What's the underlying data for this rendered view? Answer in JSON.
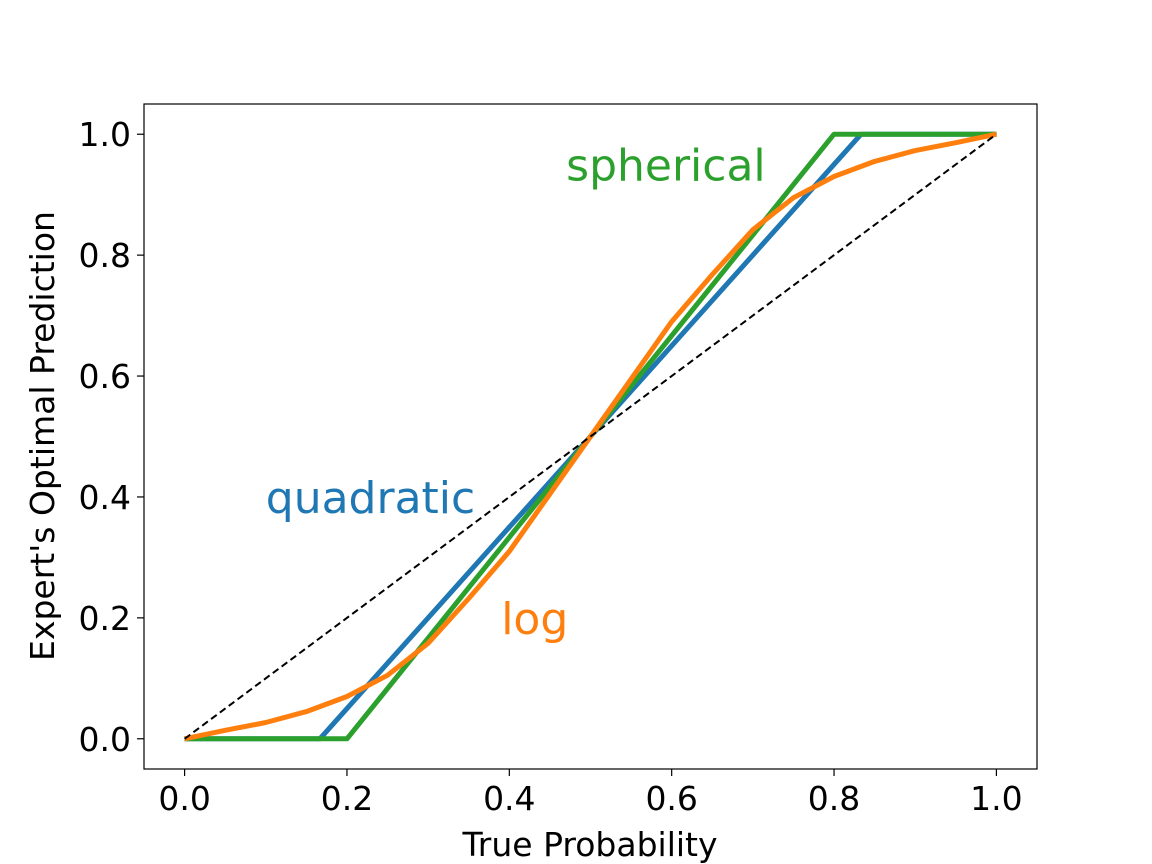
{
  "chart_data": {
    "type": "line",
    "xlabel": "True Probability",
    "ylabel": "Expert's Optimal Prediction",
    "xlim": [
      -0.05,
      1.05
    ],
    "ylim": [
      -0.05,
      1.05
    ],
    "xticks": [
      "0.0",
      "0.2",
      "0.4",
      "0.6",
      "0.8",
      "1.0"
    ],
    "yticks": [
      "0.0",
      "0.2",
      "0.4",
      "0.6",
      "0.8",
      "1.0"
    ],
    "grid": false,
    "legend": "none",
    "series": [
      {
        "name": "quadratic",
        "color": "#1f77b4",
        "x": [
          0.0,
          0.1667,
          0.8333,
          1.0
        ],
        "y": [
          0.0,
          0.0,
          1.0,
          1.0
        ]
      },
      {
        "name": "spherical",
        "color": "#2ca02c",
        "x": [
          0.0,
          0.2,
          0.8,
          1.0
        ],
        "y": [
          0.0,
          0.0,
          1.0,
          1.0
        ]
      },
      {
        "name": "log",
        "color": "#ff7f0e",
        "x": [
          0.0,
          0.05,
          0.1,
          0.15,
          0.2,
          0.25,
          0.3,
          0.35,
          0.4,
          0.45,
          0.5,
          0.55,
          0.6,
          0.65,
          0.7,
          0.75,
          0.8,
          0.85,
          0.9,
          0.95,
          1.0
        ],
        "y": [
          0.0,
          0.014,
          0.027,
          0.045,
          0.07,
          0.105,
          0.158,
          0.232,
          0.31,
          0.405,
          0.5,
          0.595,
          0.69,
          0.768,
          0.842,
          0.895,
          0.93,
          0.955,
          0.973,
          0.986,
          1.0
        ]
      },
      {
        "name": "",
        "color": "#000000",
        "dashed": true,
        "x": [
          0.0,
          1.0
        ],
        "y": [
          0.0,
          1.0
        ]
      }
    ],
    "annotations": [
      {
        "text": "spherical",
        "x": 0.47,
        "y": 0.95,
        "color": "#2ca02c"
      },
      {
        "text": "quadratic",
        "x": 0.1,
        "y": 0.4,
        "color": "#1f77b4"
      },
      {
        "text": "log",
        "x": 0.39,
        "y": 0.2,
        "color": "#ff7f0e"
      }
    ]
  }
}
